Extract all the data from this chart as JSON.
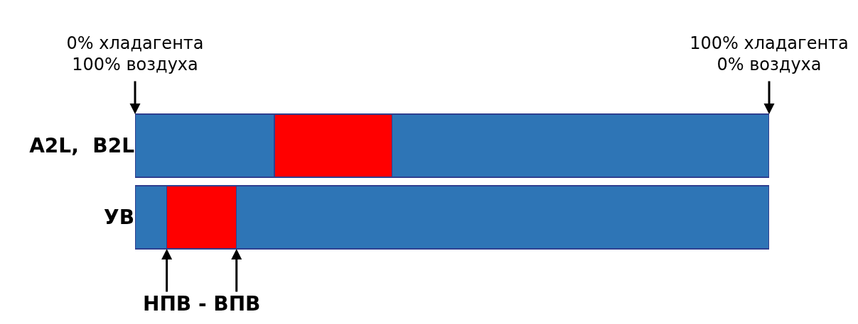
{
  "chart_data": {
    "type": "bar",
    "orientation": "horizontal",
    "stacked": true,
    "categories": [
      "A2L,  B2L",
      "УВ"
    ],
    "series": [
      {
        "color": "#2e75b6",
        "values": [
          22,
          5
        ]
      },
      {
        "color": "#ff0000",
        "values": [
          18.5,
          11
        ]
      },
      {
        "color": "#2e75b6",
        "values": [
          59.5,
          84
        ]
      }
    ],
    "xlim": [
      0,
      100
    ],
    "xticks": [
      {
        "value": 0,
        "label": "0% хладагента"
      },
      {
        "value": 100,
        "label": "100% хладагента"
      }
    ],
    "x2lim": [
      100,
      0
    ],
    "x2ticks": [
      {
        "value": 100,
        "label": "100% воздуха"
      },
      {
        "value": 0,
        "label": "0% воздуха"
      }
    ],
    "annotations": [
      {
        "text": "НПВ - ВПВ",
        "x": 10.5,
        "y": "УВ"
      }
    ]
  }
}
